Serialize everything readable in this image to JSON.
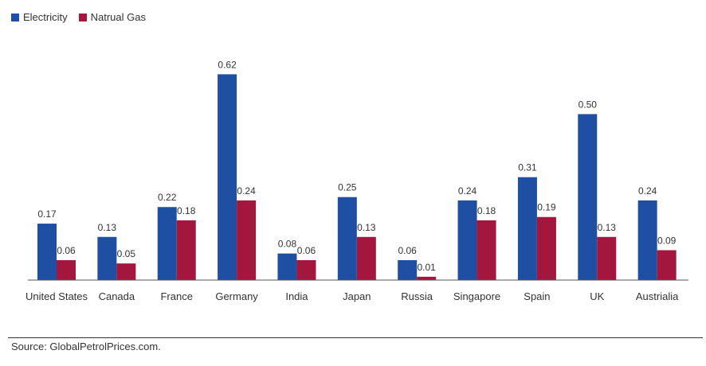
{
  "chart_data": {
    "type": "bar",
    "title": "",
    "xlabel": "",
    "ylabel": "",
    "ylim": [
      0,
      0.7
    ],
    "grid": false,
    "legend_position": "top-left",
    "categories": [
      "United States",
      "Canada",
      "France",
      "Germany",
      "India",
      "Japan",
      "Russia",
      "Singapore",
      "Spain",
      "UK",
      "Austrialia"
    ],
    "series": [
      {
        "name": "Electricity",
        "color": "#1f4fa3",
        "values": [
          0.17,
          0.13,
          0.22,
          0.62,
          0.08,
          0.25,
          0.06,
          0.24,
          0.31,
          0.5,
          0.24
        ]
      },
      {
        "name": "Natrual Gas",
        "color": "#a3173f",
        "values": [
          0.06,
          0.05,
          0.18,
          0.24,
          0.06,
          0.13,
          0.01,
          0.18,
          0.19,
          0.13,
          0.09
        ]
      }
    ]
  },
  "legend": {
    "electricity_label": "Electricity",
    "gas_label": "Natrual Gas"
  },
  "source": "Source: GlobalPetrolPrices.com."
}
